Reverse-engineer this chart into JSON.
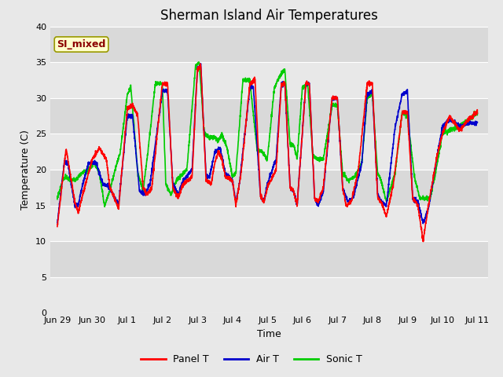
{
  "title": "Sherman Island Air Temperatures",
  "xlabel": "Time",
  "ylabel": "Temperature (C)",
  "ylim": [
    0,
    40
  ],
  "yticks": [
    0,
    5,
    10,
    15,
    20,
    25,
    30,
    35,
    40
  ],
  "xtick_labels": [
    "Jun 29",
    "Jun 30",
    "Jul 1",
    "Jul 2",
    "Jul 3",
    "Jul 4",
    "Jul 5",
    "Jul 6",
    "Jul 7",
    "Jul 8",
    "Jul 9",
    "Jul 10",
    "Jul 11"
  ],
  "xtick_positions": [
    0,
    1,
    2,
    3,
    4,
    5,
    6,
    7,
    8,
    9,
    10,
    11,
    12
  ],
  "background_color": "#e8e8e8",
  "plot_bg_color": "#e8e8e8",
  "white_band_color": "#f5f5f5",
  "gray_band_color": "#d8d8d8",
  "grid_color": "#ffffff",
  "label_box_color": "#ffffcc",
  "label_box_edge": "#999900",
  "label_text": "SI_mixed",
  "label_text_color": "#8b0000",
  "legend_items": [
    "Panel T",
    "Air T",
    "Sonic T"
  ],
  "legend_colors": [
    "#ff0000",
    "#0000cc",
    "#00cc00"
  ],
  "line_width": 1.2,
  "title_fontsize": 12,
  "axis_fontsize": 9,
  "tick_fontsize": 8
}
